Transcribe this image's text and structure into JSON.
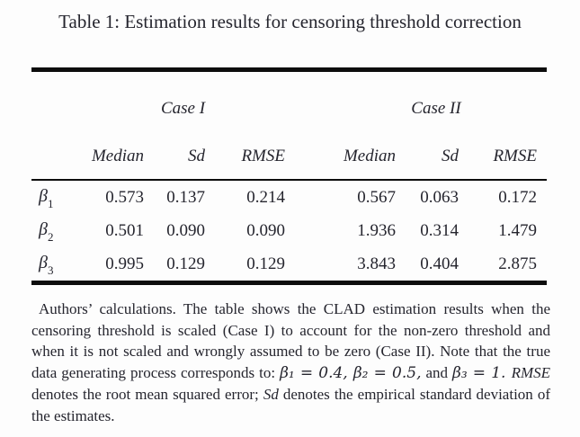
{
  "title": "Table 1: Estimation results for censoring threshold correction",
  "table": {
    "group_headers": {
      "case1": "Case I",
      "case2": "Case II"
    },
    "column_headers": {
      "median": "Median",
      "sd": "Sd",
      "rmse": "RMSE"
    },
    "rows": [
      {
        "label": "β",
        "sub": "1",
        "c1_median": "0.573",
        "c1_sd": "0.137",
        "c1_rmse": "0.214",
        "c2_median": "0.567",
        "c2_sd": "0.063",
        "c2_rmse": "0.172"
      },
      {
        "label": "β",
        "sub": "2",
        "c1_median": "0.501",
        "c1_sd": "0.090",
        "c1_rmse": "0.090",
        "c2_median": "1.936",
        "c2_sd": "0.314",
        "c2_rmse": "1.479"
      },
      {
        "label": "β",
        "sub": "3",
        "c1_median": "0.995",
        "c1_sd": "0.129",
        "c1_rmse": "0.129",
        "c2_median": "3.843",
        "c2_sd": "0.404",
        "c2_rmse": "2.875"
      }
    ]
  },
  "footnote": {
    "part1": "Authors’ calculations. The table shows the CLAD estimation results when the censoring threshold is scaled (Case I) to account for the non-zero threshold and when it is not scaled and wrongly assumed to be zero (Case II). Note that the true data generating process corresponds to: ",
    "math1": "β₁ = 0.4, β₂ = 0.5,",
    "conj": " and ",
    "math2": "β₃ = 1. ",
    "rmse_term": "RMSE",
    "part2": " denotes the root mean squared error; ",
    "sd_term": "Sd",
    "part3": " denotes the empirical standard deviation of the estimates."
  },
  "colors": {
    "text": "#25252e",
    "rule": "#0d0d0d",
    "background": "#fdfdfd"
  }
}
